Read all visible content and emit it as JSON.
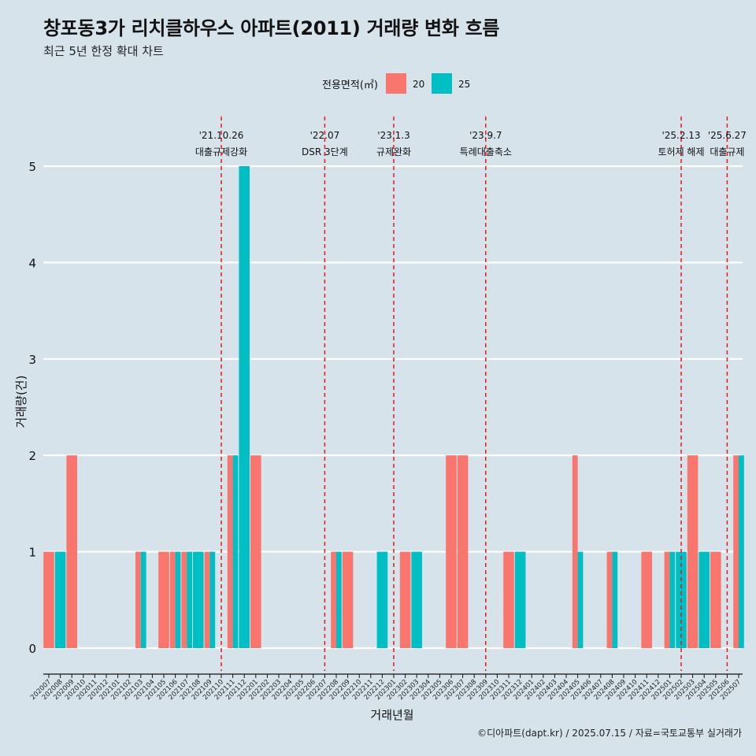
{
  "title": "창포동3가 리치클하우스 아파트(2011) 거래량 변화 흐름",
  "subtitle": "최근 5년 한정 확대 차트",
  "caption": "©디아파트(dapt.kr) / 2025.07.15 / 자료=국토교통부 실거래가",
  "colors": {
    "background": "#d6e3ea",
    "series_20": "#f8766d",
    "series_25": "#00bfc4",
    "event_line": "#e41a1c",
    "grid": "#ffffff"
  },
  "chart_data": {
    "type": "bar",
    "xlabel": "거래년월",
    "ylabel": "거래량(건)",
    "ylim": [
      0,
      5
    ],
    "yticks": [
      0,
      1,
      2,
      3,
      4,
      5
    ],
    "grid": true,
    "legend_title": "전용면적(㎡)",
    "legend_position": "top",
    "categories": [
      "202007",
      "202008",
      "202009",
      "202010",
      "202011",
      "202012",
      "202101",
      "202102",
      "202103",
      "202104",
      "202105",
      "202106",
      "202107",
      "202108",
      "202109",
      "202110",
      "202111",
      "202112",
      "202201",
      "202202",
      "202203",
      "202204",
      "202205",
      "202206",
      "202207",
      "202208",
      "202209",
      "202210",
      "202211",
      "202212",
      "202301",
      "202302",
      "202303",
      "202304",
      "202305",
      "202306",
      "202307",
      "202308",
      "202309",
      "202310",
      "202311",
      "202312",
      "202401",
      "202402",
      "202403",
      "202404",
      "202405",
      "202406",
      "202407",
      "202408",
      "202409",
      "202410",
      "202411",
      "202412",
      "202501",
      "202502",
      "202503",
      "202504",
      "202505",
      "202506",
      "202507"
    ],
    "series": [
      {
        "name": "20",
        "color": "#f8766d",
        "values": [
          1,
          0,
          2,
          0,
          0,
          0,
          0,
          0,
          1,
          0,
          1,
          1,
          1,
          0,
          1,
          0,
          2,
          0,
          2,
          0,
          0,
          0,
          0,
          0,
          0,
          1,
          1,
          0,
          0,
          0,
          0,
          1,
          0,
          0,
          0,
          2,
          2,
          0,
          0,
          0,
          1,
          0,
          0,
          0,
          0,
          0,
          2,
          0,
          0,
          1,
          0,
          0,
          1,
          0,
          1,
          0,
          2,
          0,
          1,
          0,
          2
        ]
      },
      {
        "name": "25",
        "color": "#00bfc4",
        "values": [
          0,
          1,
          0,
          0,
          0,
          0,
          0,
          0,
          1,
          0,
          0,
          1,
          1,
          1,
          1,
          0,
          2,
          5,
          0,
          0,
          0,
          0,
          0,
          0,
          0,
          1,
          0,
          0,
          0,
          1,
          0,
          0,
          1,
          0,
          0,
          0,
          0,
          0,
          0,
          0,
          0,
          1,
          0,
          0,
          0,
          0,
          1,
          0,
          0,
          1,
          0,
          0,
          0,
          0,
          1,
          1,
          0,
          1,
          0,
          0,
          2
        ]
      }
    ],
    "events": [
      {
        "index": 15,
        "date": "'21.10.26",
        "label": "대출규제강화"
      },
      {
        "index": 24,
        "date": "'22.07",
        "label": "DSR 3단계"
      },
      {
        "index": 30,
        "date": "'23.1.3",
        "label": "규제완화"
      },
      {
        "index": 38,
        "date": "'23.9.7",
        "label": "특례대출축소"
      },
      {
        "index": 55,
        "date": "'25.2.13",
        "label": "토허제 해제"
      },
      {
        "index": 59,
        "date": "'25.6.27",
        "label": "대출규제"
      }
    ]
  }
}
